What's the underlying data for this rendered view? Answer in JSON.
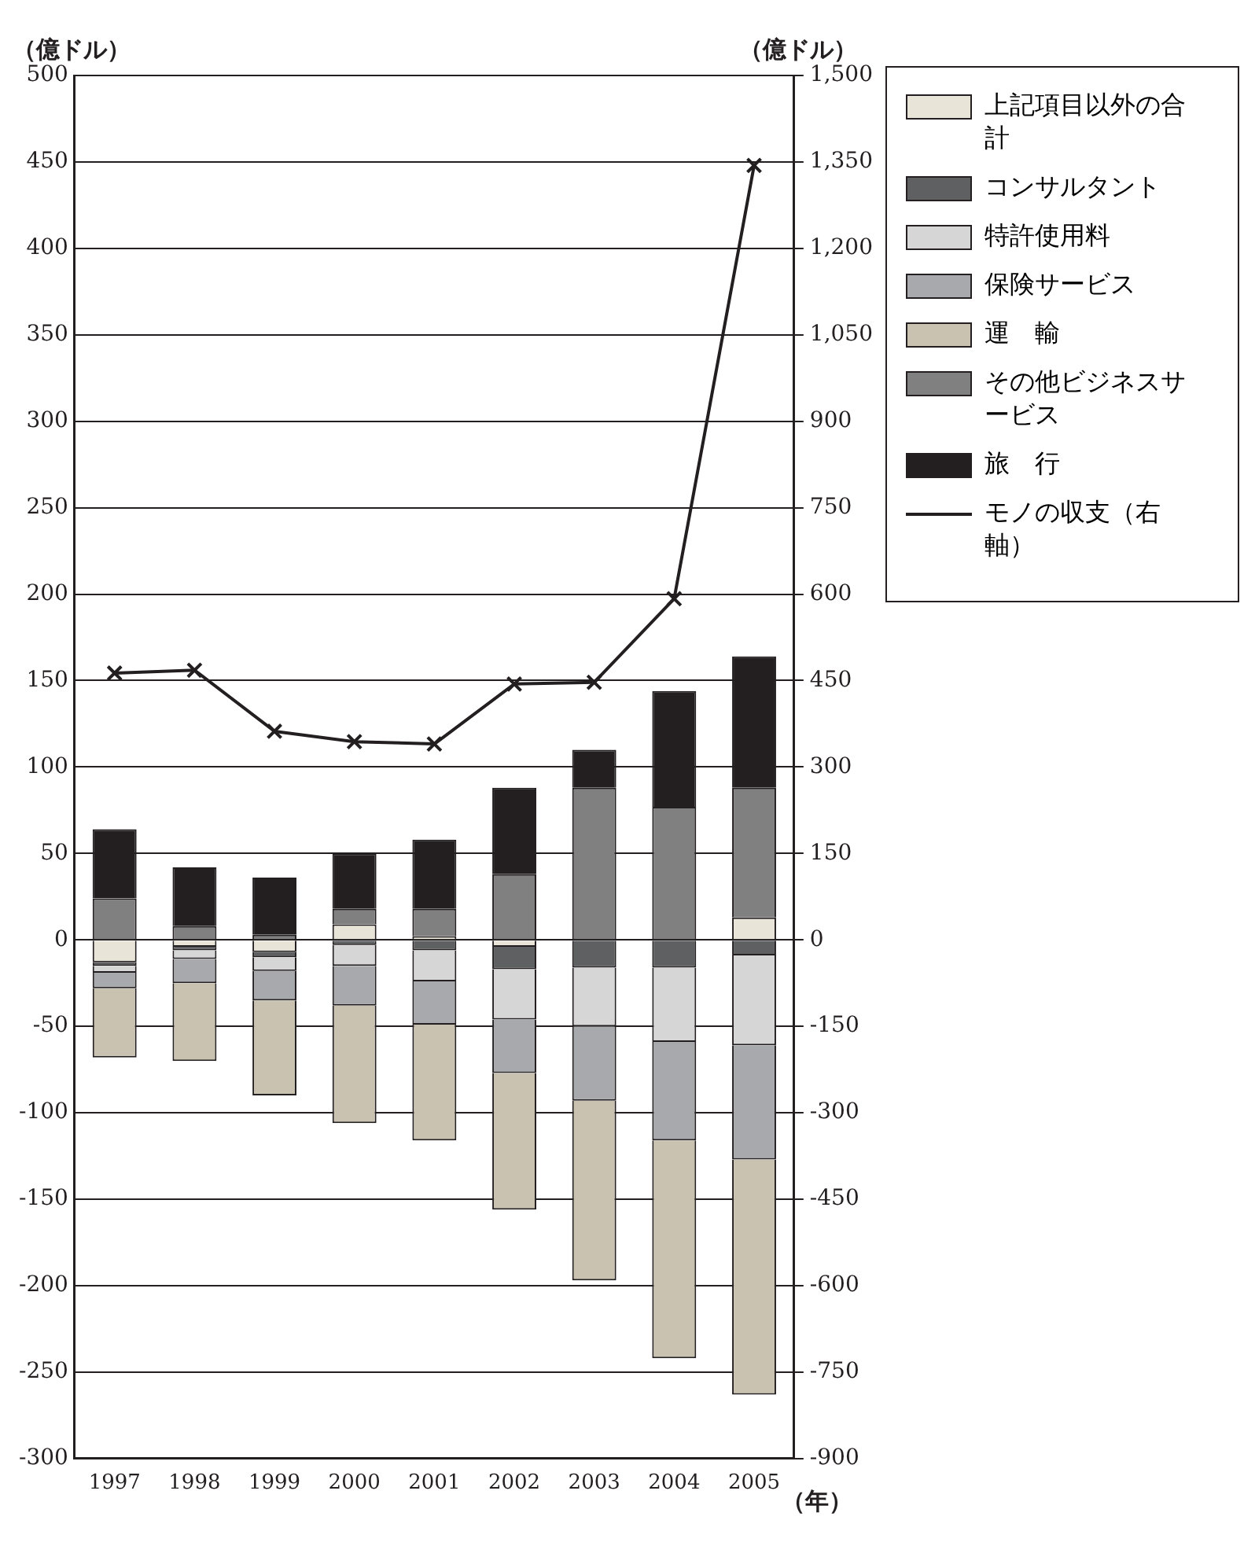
{
  "chart_data": {
    "type": "bar",
    "stacked": true,
    "ylabel": "（億ドル）",
    "y2label": "（億ドル）",
    "xlabel": "（年）",
    "categories": [
      "1997",
      "1998",
      "1999",
      "2000",
      "2001",
      "2002",
      "2003",
      "2004",
      "2005"
    ],
    "series": [
      {
        "name": "上記項目以外の合計",
        "color": "#e9e4d8",
        "values": [
          -13,
          -4,
          -7,
          9,
          2,
          -4,
          0,
          0,
          13
        ]
      },
      {
        "name": "コンサルタント",
        "color": "#5f6062",
        "values": [
          -2,
          -2,
          -3,
          -3,
          -6,
          -13,
          -16,
          -16,
          -9
        ]
      },
      {
        "name": "特許使用料",
        "color": "#d6d6d6",
        "values": [
          -4,
          -5,
          -8,
          -12,
          -18,
          -29,
          -34,
          -43,
          -52
        ]
      },
      {
        "name": "保険サービス",
        "color": "#a8a9ad",
        "values": [
          -9,
          -14,
          -17,
          -23,
          -25,
          -31,
          -43,
          -57,
          -66
        ]
      },
      {
        "name": "運　輸",
        "color": "#c9c2b0",
        "values": [
          -40,
          -45,
          -55,
          -68,
          -67,
          -79,
          -104,
          -126,
          -136
        ]
      },
      {
        "name": "その他ビジネスサービス",
        "color": "#808080",
        "values": [
          24,
          8,
          3,
          9,
          16,
          38,
          88,
          77,
          75
        ]
      },
      {
        "name": "旅　行",
        "color": "#231f20",
        "values": [
          40,
          34,
          33,
          32,
          40,
          50,
          22,
          67,
          76
        ]
      },
      {
        "name": "モノの収支（右軸）",
        "type": "line",
        "axis": "y2",
        "marker": "cross",
        "color": "#231f20",
        "values": [
          463,
          468,
          362,
          344,
          340,
          444,
          447,
          592,
          1344
        ]
      }
    ],
    "ylim": [
      -300,
      500
    ],
    "yticks": [
      -300,
      -250,
      -200,
      -150,
      -100,
      -50,
      0,
      50,
      100,
      150,
      200,
      250,
      300,
      350,
      400,
      450,
      500
    ],
    "y2lim": [
      -900,
      1500
    ],
    "y2ticks": [
      -900,
      -750,
      -600,
      -450,
      -300,
      -150,
      0,
      150,
      300,
      450,
      600,
      750,
      900,
      {
        "value": 1050,
        "label": "1,050"
      },
      {
        "value": 1200,
        "label": "1,200"
      },
      {
        "value": 1350,
        "label": "1,350"
      },
      {
        "value": 1500,
        "label": "1,500"
      }
    ],
    "grid": "y",
    "legend": "top right"
  }
}
